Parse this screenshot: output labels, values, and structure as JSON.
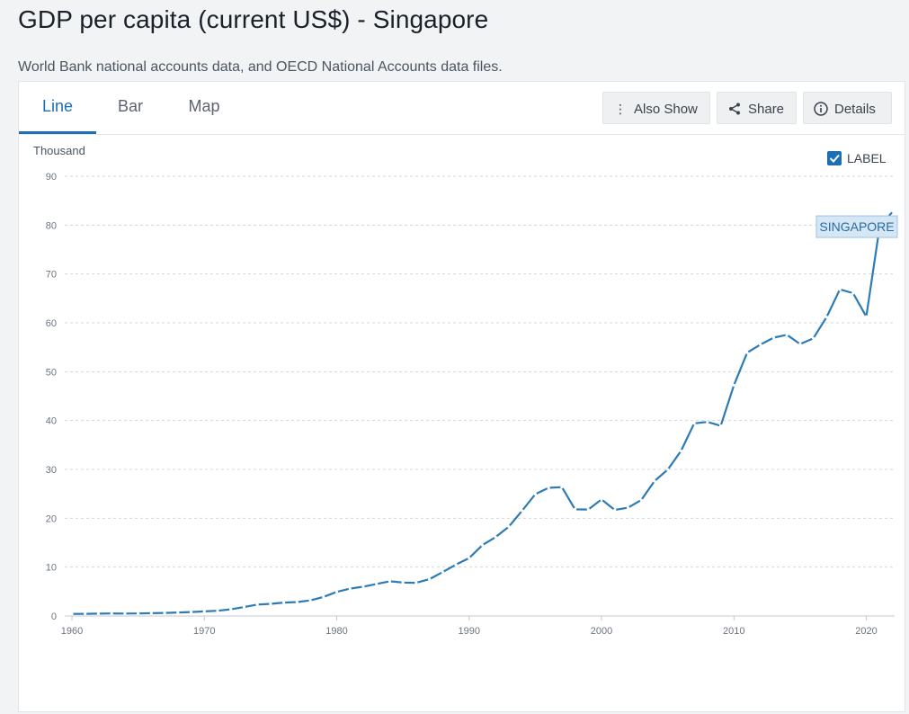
{
  "page": {
    "title": "GDP per capita (current US$) - Singapore",
    "subtitle": "World Bank national accounts data, and OECD National Accounts data files."
  },
  "tabs": [
    {
      "label": "Line",
      "active": true
    },
    {
      "label": "Bar",
      "active": false
    },
    {
      "label": "Map",
      "active": false
    }
  ],
  "toolbar": {
    "also_show": "Also Show",
    "share": "Share",
    "details": "Details"
  },
  "label_toggle": {
    "text": "LABEL",
    "checked": true
  },
  "colors": {
    "accent": "#1d6fb3",
    "series": "#2c7bb6",
    "label_bg": "#d5e6f5"
  },
  "chart_data": {
    "type": "line",
    "title": "",
    "ylabel": "Thousand",
    "xlabel": "",
    "ylim": [
      0,
      90
    ],
    "xlim": [
      1960,
      2022
    ],
    "yticks": [
      0,
      10,
      20,
      30,
      40,
      50,
      60,
      70,
      80,
      90
    ],
    "xticks": [
      1960,
      1970,
      1980,
      1990,
      2000,
      2010,
      2020
    ],
    "grid": true,
    "series": [
      {
        "name": "SINGAPORE",
        "x": [
          1960,
          1961,
          1962,
          1963,
          1964,
          1965,
          1966,
          1967,
          1968,
          1969,
          1970,
          1971,
          1972,
          1973,
          1974,
          1975,
          1976,
          1977,
          1978,
          1979,
          1980,
          1981,
          1982,
          1983,
          1984,
          1985,
          1986,
          1987,
          1988,
          1989,
          1990,
          1991,
          1992,
          1993,
          1994,
          1995,
          1996,
          1997,
          1998,
          1999,
          2000,
          2001,
          2002,
          2003,
          2004,
          2005,
          2006,
          2007,
          2008,
          2009,
          2010,
          2011,
          2012,
          2013,
          2014,
          2015,
          2016,
          2017,
          2018,
          2019,
          2020,
          2021,
          2022
        ],
        "values": [
          0.43,
          0.45,
          0.47,
          0.51,
          0.49,
          0.52,
          0.57,
          0.63,
          0.71,
          0.81,
          0.93,
          1.07,
          1.36,
          1.83,
          2.34,
          2.49,
          2.75,
          2.85,
          3.19,
          3.9,
          4.93,
          5.6,
          6.0,
          6.55,
          7.11,
          6.84,
          6.79,
          7.52,
          8.98,
          10.5,
          11.86,
          14.5,
          16.14,
          18.3,
          21.55,
          24.94,
          26.23,
          26.38,
          21.83,
          21.8,
          23.85,
          21.7,
          22.16,
          23.73,
          27.61,
          29.96,
          33.77,
          39.43,
          39.72,
          38.93,
          47.24,
          53.89,
          55.55,
          56.97,
          57.56,
          55.65,
          56.83,
          61.18,
          66.84,
          66.07,
          61.27,
          79.6,
          82.81
        ]
      }
    ]
  }
}
